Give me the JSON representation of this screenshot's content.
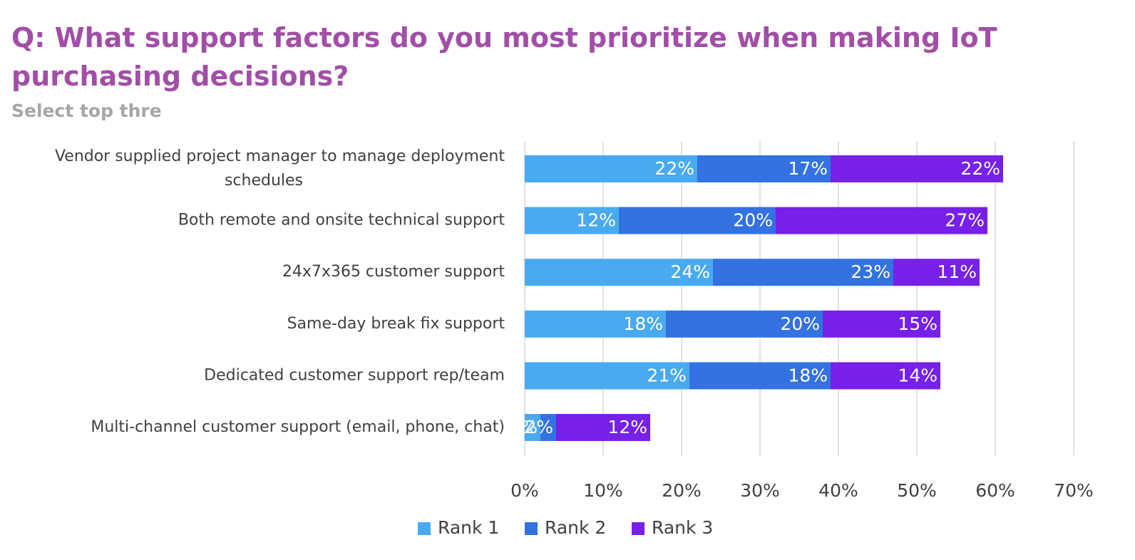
{
  "header": {
    "title": "Q: What support factors do you most prioritize when making IoT purchasing decisions?",
    "subtitle": "Select top thre"
  },
  "chart_data": {
    "type": "bar",
    "orientation": "horizontal",
    "stacked": true,
    "categories": [
      [
        "Vendor supplied project manager to manage deployment",
        "schedules"
      ],
      [
        "Both remote and onsite technical support"
      ],
      [
        "24x7x365 customer support"
      ],
      [
        "Same-day break fix support"
      ],
      [
        "Dedicated customer support rep/team"
      ],
      [
        "Multi-channel customer support (email, phone, chat)"
      ]
    ],
    "series": [
      {
        "name": "Rank 1",
        "color": "#4aaaf0",
        "values": [
          22,
          12,
          24,
          18,
          21,
          2
        ]
      },
      {
        "name": "Rank 2",
        "color": "#3372e0",
        "values": [
          17,
          20,
          23,
          20,
          18,
          2
        ]
      },
      {
        "name": "Rank 3",
        "color": "#7620e8",
        "values": [
          22,
          27,
          11,
          15,
          14,
          12
        ]
      }
    ],
    "value_suffix": "%",
    "xlim": [
      0,
      70
    ],
    "x_ticks": [
      0,
      10,
      20,
      30,
      40,
      50,
      60,
      70
    ],
    "x_tick_labels": [
      "0%",
      "10%",
      "20%",
      "30%",
      "40%",
      "50%",
      "60%",
      "70%"
    ],
    "grid": true,
    "legend_position": "bottom-center",
    "xlabel": "",
    "ylabel": ""
  }
}
